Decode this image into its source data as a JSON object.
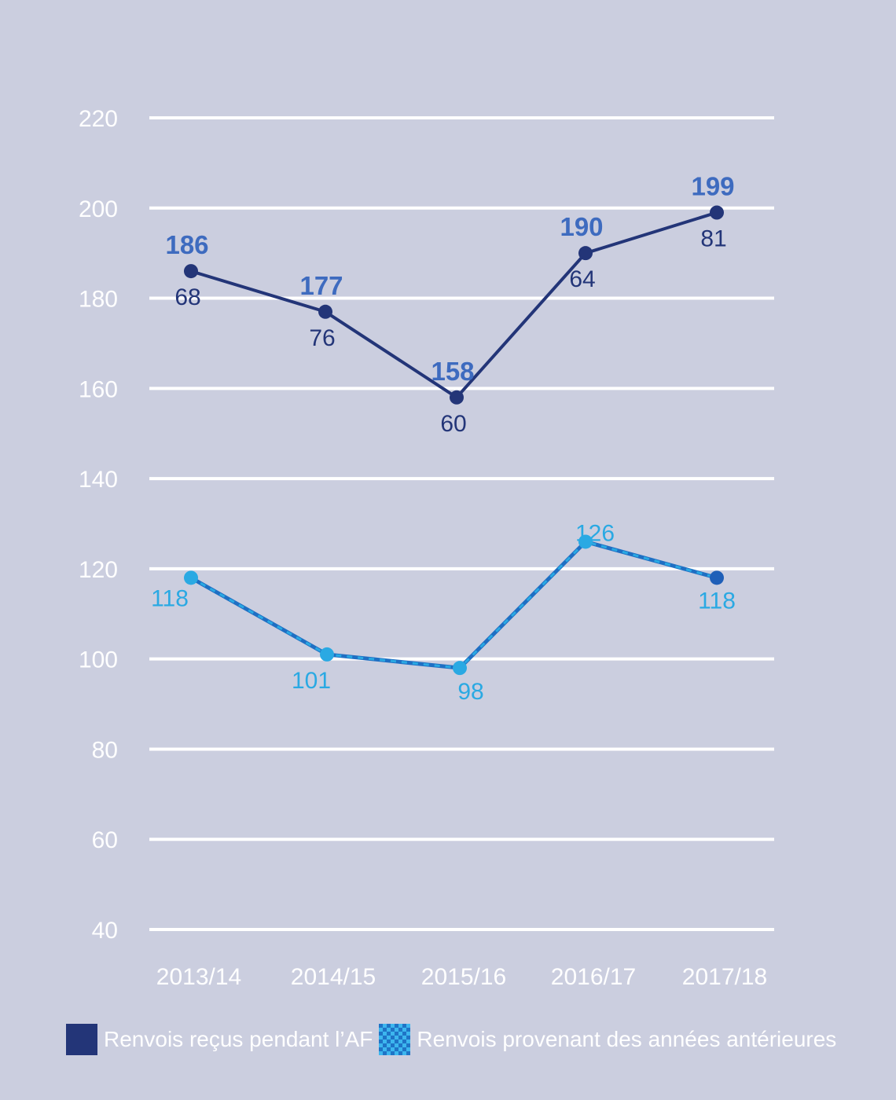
{
  "chart_data": {
    "type": "line",
    "categories": [
      "2013/14",
      "2014/15",
      "2015/16",
      "2016/17",
      "2017/18"
    ],
    "ylim": [
      40,
      220
    ],
    "yticks": [
      40,
      60,
      80,
      100,
      120,
      140,
      160,
      180,
      200,
      220
    ],
    "grid": true,
    "legend_placement": "bottom-left",
    "series": [
      {
        "name": "Renvois reçus pendant l’AF",
        "values": [
          68,
          76,
          60,
          64,
          81
        ],
        "color": "#233578"
      },
      {
        "name": "Renvois provenant des années antérieures",
        "values": [
          118,
          101,
          98,
          126,
          118
        ],
        "color": "#2aa9e3"
      }
    ],
    "totals": [
      186,
      177,
      158,
      190,
      199
    ],
    "totals_color": "#3e6bbf"
  }
}
